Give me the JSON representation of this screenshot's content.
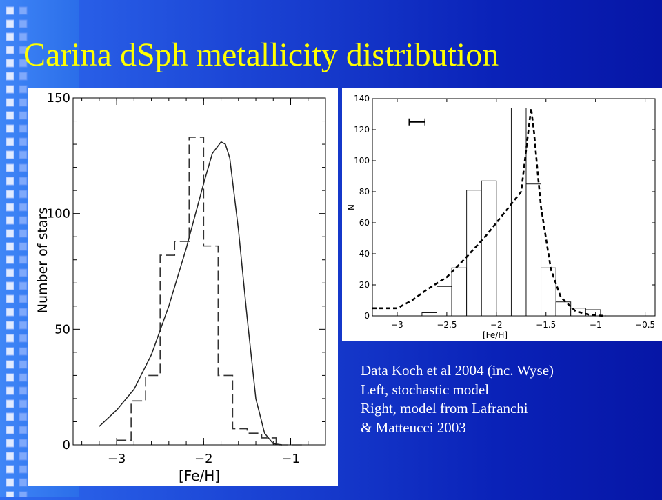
{
  "slide": {
    "title": "Carina dSph metallicity distribution",
    "caption_lines": [
      "Data Koch et al 2004 (inc. Wyse)",
      "Left, stochastic model",
      "Right, model from Lafranchi",
      "& Matteucci 2003"
    ],
    "colors": {
      "title": "#ffff00",
      "background": "#0a22b8",
      "caption": "#ffffff"
    }
  },
  "chart_data": [
    {
      "type": "bar",
      "subtype": "step-histogram-with-model-curve",
      "xlabel": "[Fe/H]",
      "ylabel": "Number of stars",
      "xlim": [
        -3.5,
        -0.6
      ],
      "ylim": [
        0,
        150
      ],
      "x_ticks": [
        -3,
        -2,
        -1
      ],
      "y_ticks": [
        0,
        50,
        100,
        150
      ],
      "bin_edges": [
        -3.0,
        -2.8333,
        -2.6667,
        -2.5,
        -2.3333,
        -2.1667,
        -2.0,
        -1.8333,
        -1.6667,
        -1.5,
        -1.3333,
        -1.1667,
        -1.0,
        -0.8333
      ],
      "values": [
        2,
        19,
        30,
        82,
        88,
        133,
        86,
        30,
        7,
        5,
        3,
        0,
        0
      ],
      "series": [
        {
          "style": "dashed-step",
          "values": [
            2,
            19,
            30,
            82,
            88,
            133,
            86,
            30,
            7,
            5,
            3,
            0,
            0
          ]
        },
        {
          "style": "solid-curve",
          "x": [
            -3.2,
            -3.0,
            -2.8,
            -2.6,
            -2.4,
            -2.2,
            -2.0,
            -1.9,
            -1.8,
            -1.75,
            -1.7,
            -1.6,
            -1.5,
            -1.4,
            -1.3,
            -1.2,
            -1.1
          ],
          "y": [
            8,
            15,
            24,
            39,
            60,
            85,
            113,
            126,
            131,
            130,
            124,
            93,
            55,
            20,
            5,
            0.5,
            0
          ]
        }
      ]
    },
    {
      "type": "bar",
      "subtype": "histogram-with-model-curve",
      "xlabel": "[Fe/H]",
      "ylabel": "N",
      "xlim": [
        -3.25,
        -0.4
      ],
      "ylim": [
        0,
        140
      ],
      "x_ticks": [
        -3,
        -2.5,
        -2,
        -1.5,
        -1,
        -0.5
      ],
      "y_ticks": [
        0,
        20,
        40,
        60,
        80,
        100,
        120,
        140
      ],
      "bin_edges": [
        -3.0,
        -2.9,
        -2.8,
        -2.7,
        -2.6,
        -2.5,
        -2.4,
        -2.3,
        -2.2,
        -2.1,
        -2.0,
        -1.9,
        -1.8,
        -1.7,
        -1.6,
        -1.5,
        -1.4,
        -1.3,
        -1.2,
        -1.1,
        -1.0,
        -0.9
      ],
      "bar_bins": [
        {
          "x0": -2.75,
          "x1": -2.6,
          "value": 2
        },
        {
          "x0": -2.6,
          "x1": -2.45,
          "value": 19
        },
        {
          "x0": -2.45,
          "x1": -2.3,
          "value": 31
        },
        {
          "x0": -2.3,
          "x1": -2.15,
          "value": 81
        },
        {
          "x0": -2.15,
          "x1": -2.0,
          "value": 87
        },
        {
          "x0": -2.0,
          "x1": -1.85,
          "value": 0
        },
        {
          "x0": -1.85,
          "x1": -1.7,
          "value": 134
        },
        {
          "x0": -1.7,
          "x1": -1.55,
          "value": 85
        },
        {
          "x0": -1.55,
          "x1": -1.4,
          "value": 31
        },
        {
          "x0": -1.4,
          "x1": -1.25,
          "value": 9
        },
        {
          "x0": -1.25,
          "x1": -1.1,
          "value": 5
        },
        {
          "x0": -1.1,
          "x1": -0.95,
          "value": 4
        }
      ],
      "series": [
        {
          "style": "dashed-curve",
          "x": [
            -3.25,
            -3.0,
            -2.85,
            -2.7,
            -2.5,
            -2.3,
            -2.1,
            -1.9,
            -1.75,
            -1.65,
            -1.62,
            -1.58,
            -1.55,
            -1.45,
            -1.35,
            -1.2,
            -1.05,
            -0.9
          ],
          "y": [
            5,
            5,
            10,
            17,
            25,
            38,
            52,
            68,
            80,
            134,
            118,
            90,
            70,
            30,
            12,
            3,
            0.5,
            0
          ]
        }
      ],
      "error_bar": {
        "x0": -2.88,
        "x1": -2.72,
        "y": 125
      }
    }
  ]
}
